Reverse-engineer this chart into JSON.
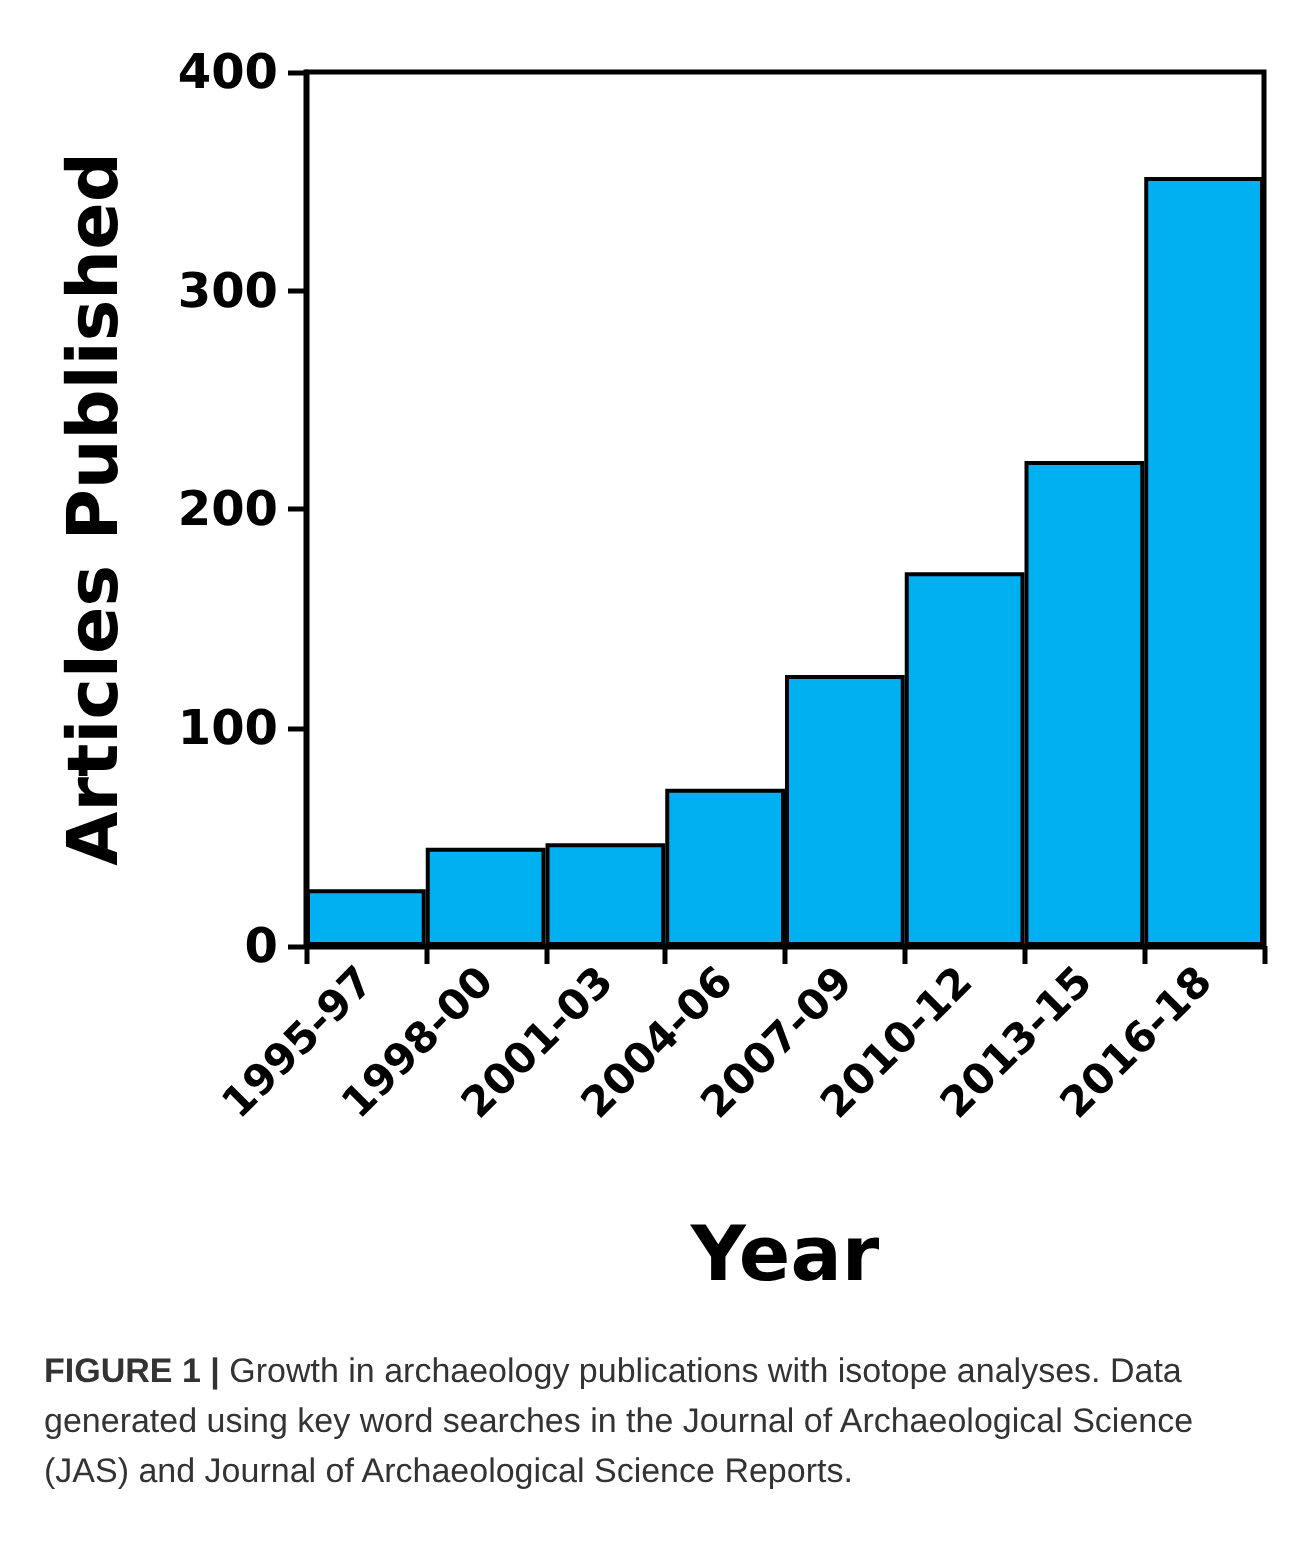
{
  "chart_data": {
    "type": "bar",
    "xlabel": "Year",
    "ylabel": "Articles Published",
    "categories": [
      "1995-97",
      "1998-00",
      "2001-03",
      "2004-06",
      "2007-09",
      "2010-12",
      "2013-15",
      "2016-18"
    ],
    "values": [
      26,
      45,
      47,
      72,
      124,
      171,
      222,
      352
    ],
    "color": "#00b0f0",
    "ylim": [
      0,
      400
    ],
    "yticks": [
      0,
      100,
      200,
      300,
      400
    ],
    "grid": false,
    "annotations": [
      "FIGURE 1 |",
      "Growth in archaeology publications with isotope analyses. Data generated using key word searches in the Journal of Archaeological Science (JAS) and Journal of Archaeological Science Reports."
    ]
  }
}
